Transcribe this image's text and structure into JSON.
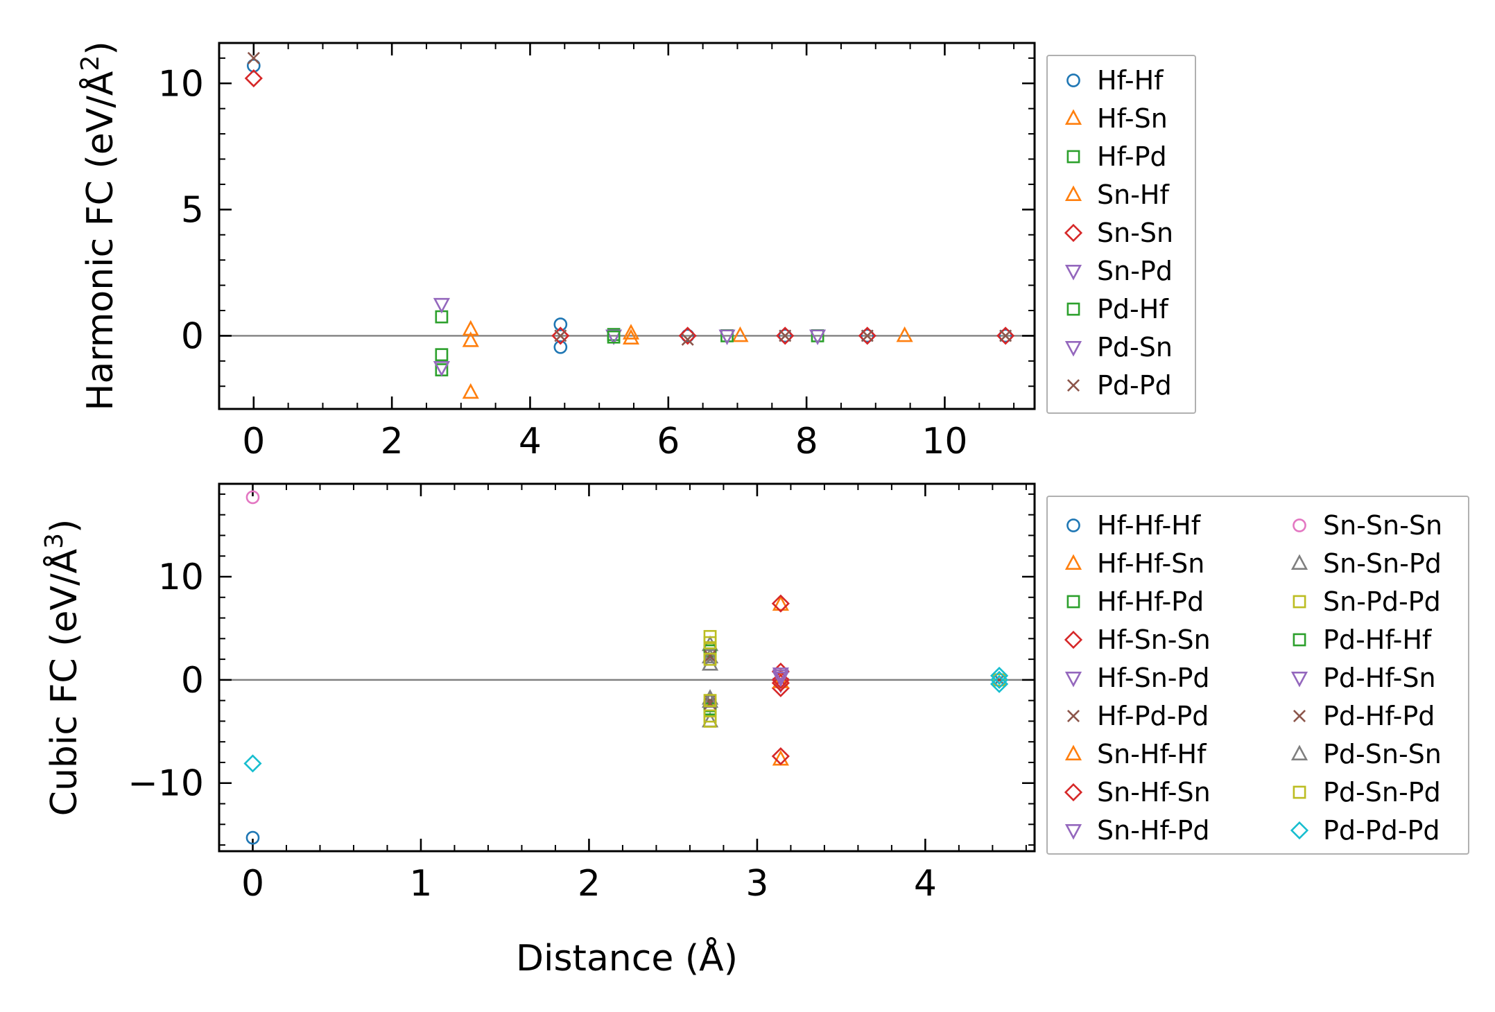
{
  "figure": {
    "xlabel_shared": "Distance (Å)"
  },
  "chart_data": [
    {
      "type": "scatter",
      "name": "harmonic",
      "ylabel": "Harmonic FC (eV/Å²)",
      "ylabel_main": "Harmonic FC (eV/Å",
      "ylabel_sup": "2",
      "ylabel_close": ")",
      "xlim": [
        -0.5,
        11.3
      ],
      "ylim": [
        -2.9,
        11.6
      ],
      "xticks": [
        0,
        2,
        4,
        6,
        8,
        10
      ],
      "yticks": [
        0,
        5,
        10
      ],
      "xminor": 0.5,
      "yminor": 1,
      "zero_line": true,
      "legend_position": "outside-right",
      "legend_columns": 1,
      "series": [
        {
          "name": "Hf-Hf",
          "marker": "circle",
          "color": "#1f77b4",
          "points": [
            [
              0,
              10.7
            ],
            [
              4.44,
              0.45
            ],
            [
              4.44,
              -0.45
            ],
            [
              6.28,
              0.0
            ],
            [
              7.69,
              0.0
            ],
            [
              8.88,
              0.0
            ],
            [
              10.88,
              0.0
            ]
          ]
        },
        {
          "name": "Hf-Sn",
          "marker": "triangle-up",
          "color": "#ff7f0e",
          "points": [
            [
              3.14,
              -2.25
            ],
            [
              3.14,
              0.25
            ],
            [
              5.46,
              0.1
            ],
            [
              7.04,
              0.0
            ],
            [
              9.42,
              0.0
            ]
          ]
        },
        {
          "name": "Hf-Pd",
          "marker": "square",
          "color": "#2ca02c",
          "points": [
            [
              2.72,
              0.75
            ],
            [
              2.72,
              -0.75
            ],
            [
              5.21,
              0.05
            ],
            [
              6.85,
              0.0
            ],
            [
              8.16,
              0.0
            ]
          ]
        },
        {
          "name": "Sn-Hf",
          "marker": "triangle-up",
          "color": "#ff7f0e",
          "points": [
            [
              3.14,
              -0.2
            ],
            [
              5.46,
              -0.1
            ]
          ]
        },
        {
          "name": "Sn-Sn",
          "marker": "diamond",
          "color": "#d62728",
          "points": [
            [
              0,
              10.2
            ],
            [
              4.44,
              0.0
            ],
            [
              6.28,
              0.0
            ],
            [
              7.69,
              0.0
            ],
            [
              8.88,
              0.0
            ],
            [
              10.88,
              0.0
            ]
          ]
        },
        {
          "name": "Sn-Pd",
          "marker": "triangle-down",
          "color": "#9467bd",
          "points": [
            [
              2.72,
              1.25
            ],
            [
              5.21,
              0.0
            ],
            [
              6.85,
              0.0
            ]
          ]
        },
        {
          "name": "Pd-Hf",
          "marker": "square",
          "color": "#2ca02c",
          "points": [
            [
              2.72,
              -1.35
            ],
            [
              5.21,
              -0.05
            ]
          ]
        },
        {
          "name": "Pd-Sn",
          "marker": "triangle-down",
          "color": "#9467bd",
          "points": [
            [
              2.72,
              -1.25
            ],
            [
              8.16,
              0.0
            ]
          ]
        },
        {
          "name": "Pd-Pd",
          "marker": "x",
          "color": "#8c564b",
          "points": [
            [
              0,
              11.0
            ],
            [
              4.44,
              0.0
            ],
            [
              6.28,
              -0.15
            ],
            [
              7.69,
              0.0
            ],
            [
              8.88,
              0.0
            ],
            [
              10.88,
              0.0
            ]
          ]
        }
      ]
    },
    {
      "type": "scatter",
      "name": "cubic",
      "xlabel": "Distance (Å)",
      "ylabel": "Cubic FC (eV/Å³)",
      "ylabel_main": "Cubic FC (eV/Å",
      "ylabel_sup": "3",
      "ylabel_close": ")",
      "xlim": [
        -0.2,
        4.65
      ],
      "ylim": [
        -16.6,
        19.0
      ],
      "xticks": [
        0,
        1,
        2,
        3,
        4
      ],
      "yticks": [
        -10,
        0,
        10
      ],
      "ytick_labels": [
        "−10",
        "0",
        "10"
      ],
      "xminor": 0.2,
      "yminor": 2,
      "zero_line": true,
      "legend_position": "outside-right",
      "legend_columns": 2,
      "series": [
        {
          "name": "Hf-Hf-Hf",
          "marker": "circle",
          "color": "#1f77b4",
          "points": [
            [
              0,
              -15.3
            ],
            [
              4.44,
              0.0
            ]
          ]
        },
        {
          "name": "Hf-Hf-Sn",
          "marker": "triangle-up",
          "color": "#ff7f0e",
          "points": [
            [
              3.14,
              7.3
            ],
            [
              3.14,
              -7.7
            ],
            [
              3.14,
              0.3
            ]
          ]
        },
        {
          "name": "Hf-Hf-Pd",
          "marker": "square",
          "color": "#2ca02c",
          "points": [
            [
              2.72,
              2.5
            ],
            [
              2.72,
              -2.5
            ]
          ]
        },
        {
          "name": "Hf-Sn-Sn",
          "marker": "diamond",
          "color": "#d62728",
          "points": [
            [
              3.14,
              7.4
            ],
            [
              3.14,
              -7.4
            ],
            [
              3.14,
              0.8
            ],
            [
              3.14,
              -0.8
            ]
          ]
        },
        {
          "name": "Hf-Sn-Pd",
          "marker": "triangle-down",
          "color": "#9467bd",
          "points": [
            [
              3.14,
              0.4
            ],
            [
              3.14,
              -0.4
            ]
          ]
        },
        {
          "name": "Hf-Pd-Pd",
          "marker": "x",
          "color": "#8c564b",
          "points": [
            [
              2.72,
              2.0
            ],
            [
              2.72,
              -2.0
            ],
            [
              4.44,
              0.0
            ]
          ]
        },
        {
          "name": "Sn-Hf-Hf",
          "marker": "triangle-up",
          "color": "#ff7f0e",
          "points": [
            [
              3.14,
              -0.2
            ]
          ]
        },
        {
          "name": "Sn-Hf-Sn",
          "marker": "diamond",
          "color": "#d62728",
          "points": [
            [
              3.14,
              0.0
            ],
            [
              3.14,
              -0.3
            ]
          ]
        },
        {
          "name": "Sn-Hf-Pd",
          "marker": "triangle-down",
          "color": "#9467bd",
          "points": [
            [
              3.14,
              0.2
            ]
          ]
        },
        {
          "name": "Sn-Sn-Sn",
          "marker": "circle",
          "color": "#e377c2",
          "points": [
            [
              0,
              17.7
            ],
            [
              4.44,
              0.0
            ]
          ]
        },
        {
          "name": "Sn-Sn-Pd",
          "marker": "triangle-up",
          "color": "#7f7f7f",
          "points": [
            [
              2.72,
              1.5
            ],
            [
              2.72,
              -1.8
            ],
            [
              2.72,
              -4.0
            ],
            [
              2.72,
              3.4
            ]
          ]
        },
        {
          "name": "Sn-Pd-Pd",
          "marker": "square",
          "color": "#bcbd22",
          "points": [
            [
              2.72,
              4.2
            ],
            [
              2.72,
              -4.0
            ],
            [
              2.72,
              3.0
            ],
            [
              2.72,
              -3.0
            ]
          ]
        },
        {
          "name": "Pd-Hf-Hf",
          "marker": "square",
          "color": "#2ca02c",
          "points": [
            [
              2.72,
              2.8
            ],
            [
              2.72,
              -2.8
            ]
          ]
        },
        {
          "name": "Pd-Hf-Sn",
          "marker": "triangle-down",
          "color": "#9467bd",
          "points": [
            [
              3.14,
              0.6
            ]
          ]
        },
        {
          "name": "Pd-Hf-Pd",
          "marker": "x",
          "color": "#8c564b",
          "points": [
            [
              2.72,
              2.3
            ],
            [
              2.72,
              -2.3
            ]
          ]
        },
        {
          "name": "Pd-Sn-Sn",
          "marker": "triangle-up",
          "color": "#7f7f7f",
          "points": [
            [
              2.72,
              -2.1
            ],
            [
              2.72,
              2.2
            ]
          ]
        },
        {
          "name": "Pd-Sn-Pd",
          "marker": "square",
          "color": "#bcbd22",
          "points": [
            [
              2.72,
              3.6
            ],
            [
              2.72,
              -3.5
            ],
            [
              2.72,
              2.0
            ],
            [
              2.72,
              -2.0
            ],
            [
              4.44,
              0.0
            ]
          ]
        },
        {
          "name": "Pd-Pd-Pd",
          "marker": "diamond",
          "color": "#17becf",
          "points": [
            [
              0,
              -8.1
            ],
            [
              4.44,
              0.0
            ],
            [
              4.44,
              0.4
            ],
            [
              4.44,
              -0.4
            ]
          ]
        }
      ]
    }
  ]
}
